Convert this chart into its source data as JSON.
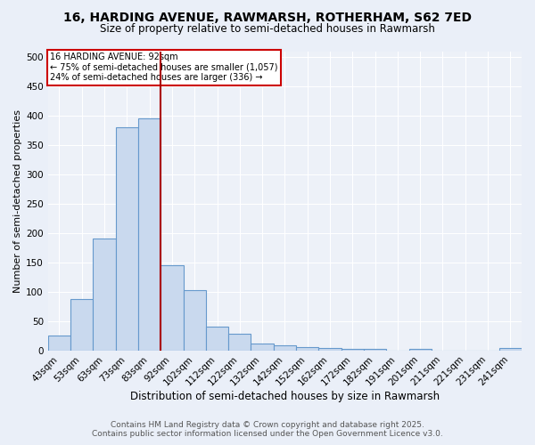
{
  "title_line1": "16, HARDING AVENUE, RAWMARSH, ROTHERHAM, S62 7ED",
  "title_line2": "Size of property relative to semi-detached houses in Rawmarsh",
  "xlabel": "Distribution of semi-detached houses by size in Rawmarsh",
  "ylabel": "Number of semi-detached properties",
  "categories": [
    "43sqm",
    "53sqm",
    "63sqm",
    "73sqm",
    "83sqm",
    "92sqm",
    "102sqm",
    "112sqm",
    "122sqm",
    "132sqm",
    "142sqm",
    "152sqm",
    "162sqm",
    "172sqm",
    "182sqm",
    "191sqm",
    "201sqm",
    "211sqm",
    "221sqm",
    "231sqm",
    "241sqm"
  ],
  "values": [
    25,
    88,
    190,
    380,
    395,
    145,
    103,
    40,
    29,
    12,
    9,
    5,
    4,
    2,
    2,
    0,
    2,
    0,
    0,
    0,
    4
  ],
  "bar_color": "#c9d9ee",
  "bar_edgecolor": "#6699cc",
  "highlight_index": 5,
  "highlight_line_color": "#aa0000",
  "annotation_title": "16 HARDING AVENUE: 92sqm",
  "annotation_line1": "← 75% of semi-detached houses are smaller (1,057)",
  "annotation_line2": "24% of semi-detached houses are larger (336) →",
  "annotation_box_facecolor": "#ffffff",
  "annotation_box_edgecolor": "#cc0000",
  "ylim": [
    0,
    510
  ],
  "yticks": [
    0,
    50,
    100,
    150,
    200,
    250,
    300,
    350,
    400,
    450,
    500
  ],
  "footer_line1": "Contains HM Land Registry data © Crown copyright and database right 2025.",
  "footer_line2": "Contains public sector information licensed under the Open Government Licence v3.0.",
  "background_color": "#eaeff8",
  "plot_bg_color": "#edf1f8",
  "grid_color": "#ffffff",
  "title_fontsize": 10,
  "subtitle_fontsize": 8.5,
  "xlabel_fontsize": 8.5,
  "ylabel_fontsize": 8,
  "tick_fontsize": 7.5,
  "footer_fontsize": 6.5
}
